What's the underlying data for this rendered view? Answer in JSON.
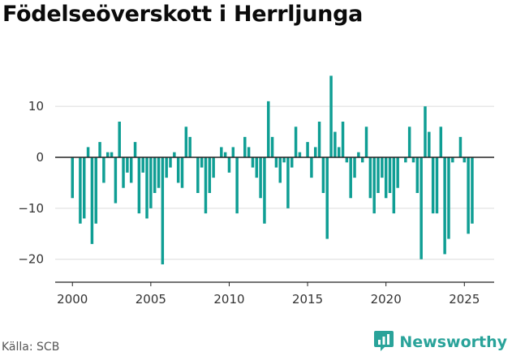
{
  "chart_data": {
    "type": "bar",
    "title": "Födelseöverskott i Herrljunga",
    "xlabel": "",
    "ylabel": "",
    "bar_color": "#0f9e94",
    "ylim": [
      -24.5,
      17.5
    ],
    "xlim": [
      1998.9,
      2026.9
    ],
    "yticks": [
      -20,
      -10,
      0,
      10
    ],
    "ytick_labels": [
      "−20",
      "−10",
      "0",
      "10"
    ],
    "xticks": [
      2000,
      2005,
      2010,
      2015,
      2020,
      2025
    ],
    "xtick_labels": [
      "2000",
      "2005",
      "2010",
      "2015",
      "2020",
      "2025"
    ],
    "grid": "horizontal",
    "legend": "none",
    "x_start": 2000,
    "x_step": 0.25,
    "values": [
      -8,
      0,
      -13,
      -12,
      2,
      -17,
      -13,
      3,
      -5,
      1,
      1,
      -9,
      7,
      -6,
      -3,
      -5,
      3,
      -11,
      -3,
      -12,
      -10,
      -7,
      -6,
      -21,
      -4,
      -2,
      1,
      -5,
      -6,
      6,
      4,
      0,
      -7,
      -2,
      -11,
      -7,
      -4,
      0,
      2,
      1,
      -3,
      2,
      -11,
      0,
      4,
      2,
      -2,
      -4,
      -8,
      -13,
      11,
      4,
      -2,
      -5,
      -1,
      -10,
      -2,
      6,
      1,
      0,
      3,
      -4,
      2,
      7,
      -7,
      -16,
      16,
      5,
      2,
      7,
      -1,
      -8,
      -4,
      1,
      -1,
      6,
      -8,
      -11,
      -7,
      -4,
      -8,
      -7,
      -11,
      -6,
      0,
      -1,
      6,
      -1,
      -7,
      -20,
      10,
      5,
      -11,
      -11,
      6,
      -19,
      -16,
      -1,
      0,
      4,
      -1,
      -15,
      -13
    ]
  },
  "footer": {
    "source": "Källa: SCB",
    "brand": "Newsworthy",
    "brand_color": "#2aa39a",
    "logo_icon": "bar-chart-logo-icon"
  }
}
